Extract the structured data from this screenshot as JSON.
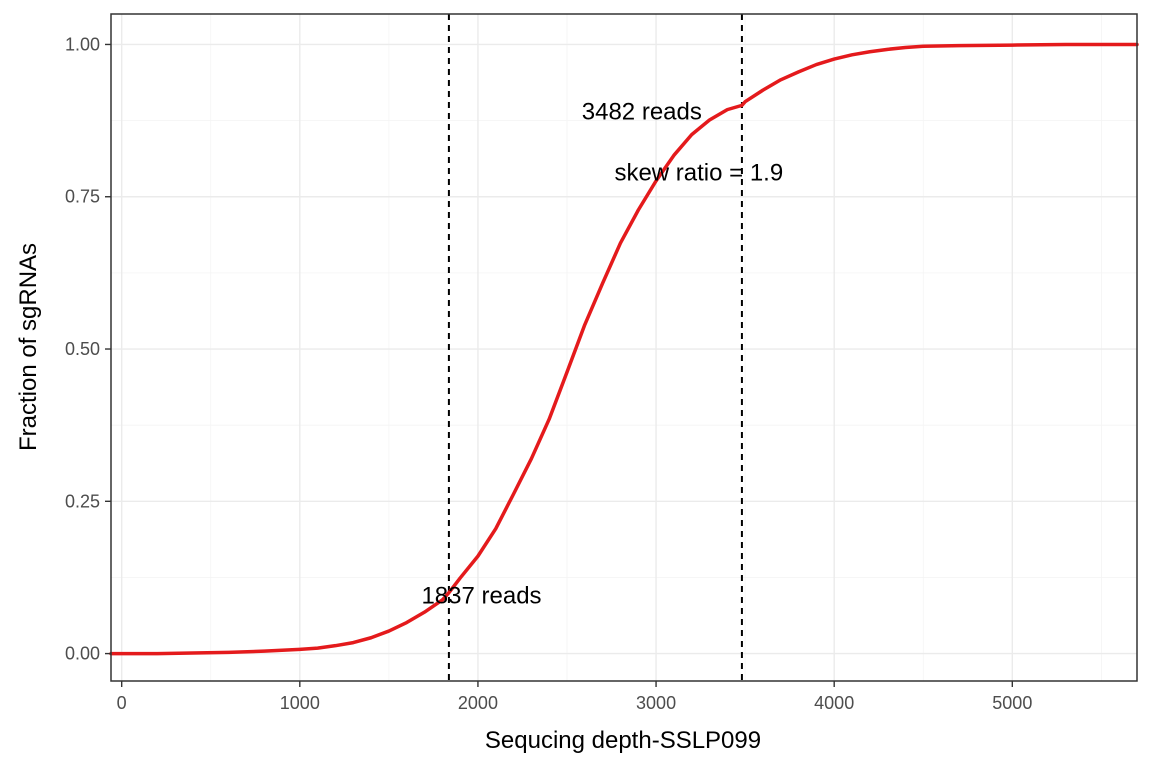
{
  "chart_data": {
    "type": "line",
    "title": "",
    "xlabel": "Sequcing depth-SSLP099",
    "ylabel": "Fraction of sgRNAs",
    "xlim": [
      -60,
      5700
    ],
    "ylim": [
      -0.045,
      1.05
    ],
    "x_ticks": [
      0,
      1000,
      2000,
      3000,
      4000,
      5000
    ],
    "x_tick_labels": [
      "0",
      "1000",
      "2000",
      "3000",
      "4000",
      "5000"
    ],
    "y_ticks": [
      0,
      0.25,
      0.5,
      0.75,
      1.0
    ],
    "y_tick_labels": [
      "0.00",
      "0.25",
      "0.50",
      "0.75",
      "1.00"
    ],
    "grid": true,
    "legend": "none",
    "series": [
      {
        "color": "#e41a1c",
        "x": [
          -60,
          0,
          200,
          400,
          600,
          800,
          1000,
          1100,
          1200,
          1300,
          1400,
          1500,
          1600,
          1700,
          1800,
          1837,
          1900,
          2000,
          2100,
          2200,
          2300,
          2400,
          2500,
          2600,
          2700,
          2800,
          2900,
          3000,
          3100,
          3200,
          3300,
          3400,
          3482,
          3500,
          3600,
          3700,
          3800,
          3900,
          4000,
          4100,
          4200,
          4300,
          4400,
          4500,
          4700,
          5000,
          5300,
          5700
        ],
        "y": [
          0.0,
          0.0,
          0.0,
          0.001,
          0.002,
          0.004,
          0.007,
          0.009,
          0.013,
          0.018,
          0.026,
          0.037,
          0.051,
          0.068,
          0.088,
          0.1,
          0.124,
          0.16,
          0.205,
          0.262,
          0.32,
          0.385,
          0.462,
          0.54,
          0.608,
          0.674,
          0.728,
          0.776,
          0.818,
          0.852,
          0.876,
          0.893,
          0.9,
          0.906,
          0.925,
          0.942,
          0.955,
          0.967,
          0.976,
          0.983,
          0.988,
          0.992,
          0.995,
          0.997,
          0.998,
          0.999,
          1.0,
          1.0
        ]
      }
    ],
    "vlines": [
      {
        "x": 1837,
        "style": "dashed",
        "color": "#000000"
      },
      {
        "x": 3482,
        "style": "dashed",
        "color": "#000000"
      }
    ],
    "annotations": [
      {
        "text": "3482 reads",
        "x": 2920,
        "y": 0.89
      },
      {
        "text": "skew ratio = 1.9",
        "x": 3240,
        "y": 0.79
      },
      {
        "text": "1837 reads",
        "x": 2020,
        "y": 0.095
      }
    ]
  }
}
